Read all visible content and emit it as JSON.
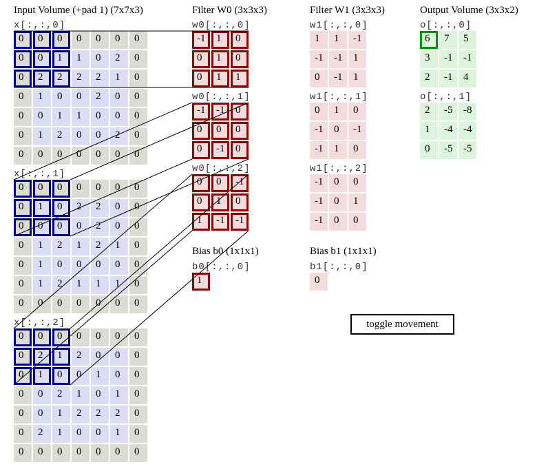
{
  "input": {
    "title": "Input Volume (+pad 1) (7x7x3)",
    "slices": [
      {
        "label": "x[:,:,0]",
        "values": [
          [
            0,
            0,
            0,
            0,
            0,
            0,
            0
          ],
          [
            0,
            0,
            1,
            1,
            0,
            2,
            0
          ],
          [
            0,
            2,
            2,
            2,
            2,
            1,
            0
          ],
          [
            0,
            1,
            0,
            0,
            2,
            0,
            0
          ],
          [
            0,
            0,
            1,
            1,
            0,
            0,
            0
          ],
          [
            0,
            1,
            2,
            0,
            0,
            2,
            0
          ],
          [
            0,
            0,
            0,
            0,
            0,
            0,
            0
          ]
        ]
      },
      {
        "label": "x[:,:,1]",
        "values": [
          [
            0,
            0,
            0,
            0,
            0,
            0,
            0
          ],
          [
            0,
            1,
            0,
            2,
            2,
            0,
            0
          ],
          [
            0,
            0,
            0,
            0,
            2,
            0,
            0
          ],
          [
            0,
            1,
            2,
            1,
            2,
            1,
            0
          ],
          [
            0,
            1,
            0,
            0,
            0,
            0,
            0
          ],
          [
            0,
            1,
            2,
            1,
            1,
            1,
            0
          ],
          [
            0,
            0,
            0,
            0,
            0,
            0,
            0
          ]
        ]
      },
      {
        "label": "x[:,:,2]",
        "values": [
          [
            0,
            0,
            0,
            0,
            0,
            0,
            0
          ],
          [
            0,
            2,
            1,
            2,
            0,
            0,
            0
          ],
          [
            0,
            1,
            0,
            0,
            1,
            0,
            0
          ],
          [
            0,
            0,
            2,
            1,
            0,
            1,
            0
          ],
          [
            0,
            0,
            1,
            2,
            2,
            2,
            0
          ],
          [
            0,
            2,
            1,
            0,
            0,
            1,
            0
          ],
          [
            0,
            0,
            0,
            0,
            0,
            0,
            0
          ]
        ]
      }
    ]
  },
  "filter_w0": {
    "title": "Filter W0 (3x3x3)",
    "slices": [
      {
        "label": "w0[:,:,0]",
        "values": [
          [
            -1,
            1,
            0
          ],
          [
            0,
            1,
            0
          ],
          [
            0,
            1,
            1
          ]
        ]
      },
      {
        "label": "w0[:,:,1]",
        "values": [
          [
            -1,
            -1,
            0
          ],
          [
            0,
            0,
            0
          ],
          [
            0,
            -1,
            0
          ]
        ]
      },
      {
        "label": "w0[:,:,2]",
        "values": [
          [
            0,
            0,
            -1
          ],
          [
            0,
            1,
            0
          ],
          [
            1,
            -1,
            -1
          ]
        ]
      }
    ]
  },
  "filter_w1": {
    "title": "Filter W1 (3x3x3)",
    "slices": [
      {
        "label": "w1[:,:,0]",
        "values": [
          [
            1,
            1,
            -1
          ],
          [
            -1,
            -1,
            1
          ],
          [
            0,
            -1,
            1
          ]
        ]
      },
      {
        "label": "w1[:,:,1]",
        "values": [
          [
            0,
            1,
            0
          ],
          [
            -1,
            0,
            -1
          ],
          [
            -1,
            1,
            0
          ]
        ]
      },
      {
        "label": "w1[:,:,2]",
        "values": [
          [
            -1,
            0,
            0
          ],
          [
            -1,
            0,
            1
          ],
          [
            -1,
            0,
            0
          ]
        ]
      }
    ]
  },
  "bias_b0": {
    "title": "Bias b0 (1x1x1)",
    "label": "b0[:,:,0]",
    "values": [
      [
        1
      ]
    ]
  },
  "bias_b1": {
    "title": "Bias b1 (1x1x1)",
    "label": "b1[:,:,0]",
    "values": [
      [
        0
      ]
    ]
  },
  "output": {
    "title": "Output Volume (3x3x2)",
    "slices": [
      {
        "label": "o[:,:,0]",
        "values": [
          [
            6,
            7,
            5
          ],
          [
            3,
            -1,
            -1
          ],
          [
            2,
            -1,
            4
          ]
        ]
      },
      {
        "label": "o[:,:,1]",
        "values": [
          [
            2,
            -5,
            -8
          ],
          [
            1,
            -4,
            -4
          ],
          [
            0,
            -5,
            -5
          ]
        ]
      }
    ]
  },
  "toggle_label": "toggle movement",
  "highlight": {
    "input_window_row": 0,
    "input_window_col": 0,
    "output_row": 0,
    "output_col": 0,
    "output_slice": 0
  },
  "colors": {
    "input_highlight": "#000099",
    "filter_highlight": "#990000",
    "output_highlight": "#009900",
    "pad": "#dcdcd5",
    "input": "#dcdcf4",
    "filter": "#f4dcdc",
    "output": "#dcf4dc"
  }
}
